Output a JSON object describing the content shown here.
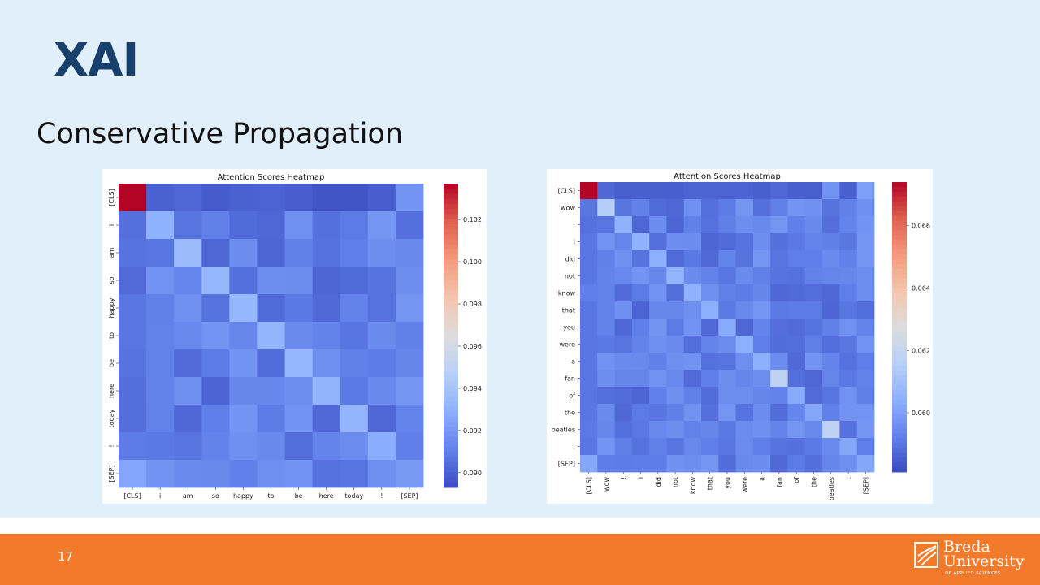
{
  "slide": {
    "title": "XAI",
    "subtitle": "Conservative Propagation",
    "page_number": "17"
  },
  "logo": {
    "line1": "Breda",
    "line2": "University",
    "tagline": "OF APPLIED SCIENCES",
    "icon": "breda-logo-icon"
  },
  "colors": {
    "background": "#e1effa",
    "title": "#17406d",
    "footer": "#f37a2a"
  },
  "chart_data": [
    {
      "type": "heatmap",
      "title": "Attention Scores Heatmap",
      "x_labels": [
        "[CLS]",
        "i",
        "am",
        "so",
        "happy",
        "to",
        "be",
        "here",
        "today",
        "!",
        "[SEP]"
      ],
      "y_labels": [
        "[CLS]",
        "i",
        "am",
        "so",
        "happy",
        "to",
        "be",
        "here",
        "today",
        "!",
        "[SEP]"
      ],
      "colorscale": "coolwarm",
      "vmin": 0.0893,
      "vmax": 0.1037,
      "colorbar_ticks": [
        0.09,
        0.092,
        0.094,
        0.096,
        0.098,
        0.1,
        0.102
      ],
      "diagonal": [
        0.1037,
        0.093,
        0.0935,
        0.0933,
        0.0933,
        0.0932,
        0.0933,
        0.0931,
        0.0932,
        0.0928,
        0.092
      ],
      "first_row": [
        0.1037,
        0.09,
        0.0902,
        0.0898,
        0.09,
        0.0901,
        0.0899,
        0.0896,
        0.0896,
        0.0899,
        0.0918
      ],
      "first_col": [
        0.1037,
        0.0905,
        0.0906,
        0.0903,
        0.0907,
        0.0907,
        0.0906,
        0.0904,
        0.0904,
        0.0909,
        0.0925
      ],
      "off_diagonal_typical": 0.091
    },
    {
      "type": "heatmap",
      "title": "Attention Scores Heatmap",
      "x_labels": [
        "[CLS]",
        "wow",
        "!",
        "i",
        "did",
        "not",
        "know",
        "that",
        "you",
        "were",
        "a",
        "fan",
        "of",
        "the",
        "beatles",
        ".",
        "[SEP]"
      ],
      "y_labels": [
        "[CLS]",
        "wow",
        "!",
        "i",
        "did",
        "not",
        "know",
        "that",
        "you",
        "were",
        "a",
        "fan",
        "of",
        "the",
        "beatles",
        ".",
        "[SEP]"
      ],
      "colorscale": "coolwarm",
      "vmin": 0.0581,
      "vmax": 0.0674,
      "colorbar_ticks": [
        0.06,
        0.062,
        0.064,
        0.066
      ],
      "diagonal": [
        0.0674,
        0.0615,
        0.0605,
        0.0605,
        0.0604,
        0.0606,
        0.0605,
        0.0604,
        0.0603,
        0.0604,
        0.0604,
        0.0618,
        0.0603,
        0.0602,
        0.0618,
        0.0602,
        0.0602
      ],
      "first_row": [
        0.0674,
        0.0587,
        0.0585,
        0.0585,
        0.0585,
        0.0585,
        0.0586,
        0.0586,
        0.0586,
        0.0586,
        0.0585,
        0.0587,
        0.0585,
        0.0585,
        0.0597,
        0.0585,
        0.06
      ],
      "first_col": [
        0.0674,
        0.059,
        0.0589,
        0.059,
        0.059,
        0.059,
        0.0592,
        0.059,
        0.059,
        0.059,
        0.059,
        0.059,
        0.059,
        0.059,
        0.0591,
        0.059,
        0.0602
      ],
      "off_diagonal_typical": 0.0592
    }
  ]
}
